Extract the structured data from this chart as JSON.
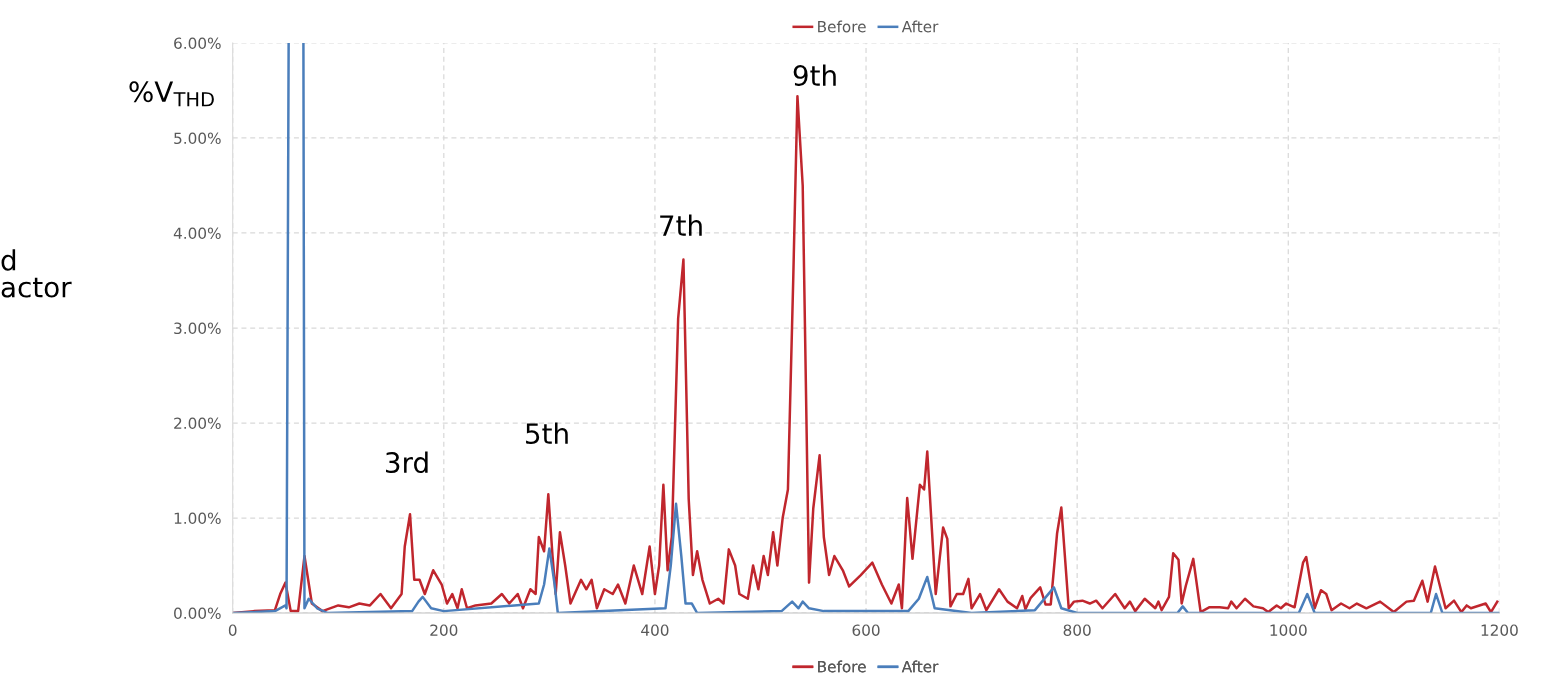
{
  "chart_data": {
    "type": "line",
    "xlim": [
      0,
      1200
    ],
    "xticks": [
      0,
      200,
      400,
      600,
      800,
      1000,
      1200
    ],
    "ylim": [
      0,
      6
    ],
    "yticks": [
      {
        "value": 0,
        "label": "0.00%"
      },
      {
        "value": 1,
        "label": "1.00%"
      },
      {
        "value": 2,
        "label": "2.00%"
      },
      {
        "value": 3,
        "label": "3.00%"
      },
      {
        "value": 4,
        "label": "4.00%"
      },
      {
        "value": 5,
        "label": "5.00%"
      },
      {
        "value": 6,
        "label": "6.00%"
      }
    ],
    "grid": true,
    "legend": [
      "top",
      "bottom"
    ],
    "line_style": "solid",
    "marker": "none",
    "annotations": [
      "%V$_{THD}$",
      "d\nactor",
      "3rd",
      "5th",
      "7th",
      "9th"
    ],
    "series": [
      {
        "name": "Before",
        "color": "#c0262d",
        "x": [
          0,
          20,
          40,
          45,
          50,
          55,
          62,
          68,
          75,
          85,
          100,
          110,
          120,
          130,
          140,
          150,
          160,
          163,
          168,
          172,
          177,
          182,
          190,
          198,
          203,
          208,
          213,
          217,
          222,
          230,
          245,
          255,
          262,
          270,
          275,
          282,
          287,
          290,
          295,
          299,
          303,
          306,
          310,
          315,
          320,
          330,
          335,
          340,
          345,
          352,
          360,
          365,
          372,
          380,
          388,
          395,
          400,
          404,
          408,
          412,
          416,
          422,
          427,
          432,
          436,
          440,
          445,
          452,
          460,
          465,
          470,
          476,
          480,
          488,
          493,
          498,
          503,
          507,
          512,
          516,
          521,
          526,
          531,
          535,
          540,
          546,
          550,
          556,
          560,
          565,
          570,
          578,
          584,
          595,
          606,
          615,
          624,
          631,
          634,
          639,
          644,
          651,
          655,
          658,
          666,
          673,
          677,
          680,
          686,
          692,
          697,
          700,
          708,
          714,
          726,
          734,
          743,
          748,
          751,
          756,
          765,
          770,
          775,
          781,
          785,
          792,
          797,
          805,
          812,
          818,
          824,
          836,
          845,
          850,
          855,
          864,
          874,
          877,
          880,
          887,
          891,
          896,
          899,
          903,
          910,
          917,
          925,
          935,
          943,
          946,
          951,
          959,
          967,
          976,
          981,
          989,
          993,
          998,
          1006,
          1014,
          1017,
          1025,
          1031,
          1036,
          1041,
          1050,
          1058,
          1065,
          1074,
          1087,
          1100,
          1112,
          1119,
          1127,
          1132,
          1139,
          1149,
          1157,
          1164,
          1169,
          1173,
          1187,
          1192,
          1198
        ],
        "values": [
          0,
          0.02,
          0.03,
          0.2,
          0.32,
          0.02,
          0.02,
          0.6,
          0.1,
          0.02,
          0.08,
          0.06,
          0.1,
          0.08,
          0.2,
          0.05,
          0.2,
          0.7,
          1.04,
          0.35,
          0.35,
          0.2,
          0.45,
          0.3,
          0.1,
          0.2,
          0.05,
          0.25,
          0.05,
          0.08,
          0.1,
          0.2,
          0.1,
          0.2,
          0.05,
          0.25,
          0.2,
          0.8,
          0.65,
          1.25,
          0.6,
          0.2,
          0.85,
          0.5,
          0.1,
          0.35,
          0.25,
          0.35,
          0.05,
          0.25,
          0.2,
          0.3,
          0.1,
          0.5,
          0.2,
          0.7,
          0.2,
          0.5,
          1.35,
          0.45,
          0.8,
          3.1,
          3.72,
          1.2,
          0.4,
          0.65,
          0.35,
          0.1,
          0.15,
          0.1,
          0.67,
          0.5,
          0.2,
          0.15,
          0.5,
          0.25,
          0.6,
          0.4,
          0.85,
          0.5,
          1.0,
          1.3,
          3.5,
          5.44,
          4.5,
          0.32,
          1.1,
          1.66,
          0.8,
          0.4,
          0.6,
          0.45,
          0.28,
          0.4,
          0.53,
          0.3,
          0.1,
          0.3,
          0.05,
          1.21,
          0.57,
          1.35,
          1.3,
          1.7,
          0.2,
          0.9,
          0.78,
          0.07,
          0.2,
          0.2,
          0.36,
          0.05,
          0.2,
          0.03,
          0.25,
          0.12,
          0.05,
          0.18,
          0.04,
          0.16,
          0.27,
          0.09,
          0.09,
          0.84,
          1.11,
          0.05,
          0.12,
          0.13,
          0.1,
          0.13,
          0.05,
          0.2,
          0.05,
          0.12,
          0.02,
          0.15,
          0.05,
          0.12,
          0.03,
          0.17,
          0.63,
          0.56,
          0.1,
          0.29,
          0.57,
          0.01,
          0.06,
          0.06,
          0.05,
          0.12,
          0.05,
          0.15,
          0.07,
          0.05,
          0.01,
          0.08,
          0.05,
          0.1,
          0.06,
          0.53,
          0.59,
          0.05,
          0.24,
          0.2,
          0.03,
          0.1,
          0.05,
          0.1,
          0.05,
          0.12,
          0.01,
          0.12,
          0.13,
          0.34,
          0.12,
          0.49,
          0.05,
          0.13,
          0.01,
          0.08,
          0.05,
          0.1,
          0.01,
          0.12
        ]
      },
      {
        "name": "After",
        "color": "#4a7ebb",
        "x": [
          0,
          40,
          50,
          51,
          53,
          60,
          67,
          68,
          72,
          80,
          90,
          170,
          176,
          180,
          188,
          200,
          290,
          295,
          300,
          305,
          308,
          410,
          415,
          420,
          425,
          429,
          435,
          440,
          520,
          530,
          536,
          540,
          546,
          560,
          640,
          650,
          658,
          665,
          700,
          760,
          778,
          785,
          800,
          895,
          900,
          905,
          1010,
          1018,
          1025,
          1135,
          1140,
          1146,
          1200
        ],
        "values": [
          0,
          0.02,
          0.08,
          0.05,
          6.0,
          null,
          6.0,
          0.05,
          0.15,
          0.05,
          0,
          0.02,
          0.12,
          0.17,
          0.05,
          0.02,
          0.1,
          0.3,
          0.68,
          0.3,
          0,
          0.05,
          0.5,
          1.15,
          0.6,
          0.1,
          0.1,
          0,
          0.02,
          0.12,
          0.05,
          0.12,
          0.05,
          0.02,
          0.02,
          0.15,
          0.38,
          0.05,
          0,
          0.03,
          0.27,
          0.05,
          0,
          0,
          0.07,
          0,
          0,
          0.2,
          0,
          0,
          0.2,
          0,
          0
        ]
      }
    ]
  }
}
